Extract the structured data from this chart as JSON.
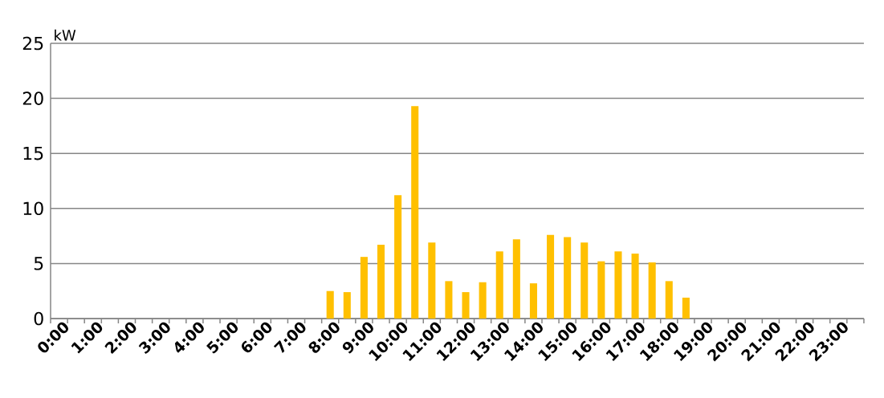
{
  "chart_data": {
    "type": "bar",
    "ylabel": "kW",
    "categories": [
      "0:00",
      null,
      "1:00",
      null,
      "2:00",
      null,
      "3:00",
      null,
      "4:00",
      null,
      "5:00",
      null,
      "6:00",
      null,
      "7:00",
      null,
      "8:00",
      null,
      "9:00",
      null,
      "10:00",
      null,
      "11:00",
      null,
      "12:00",
      null,
      "13:00",
      null,
      "14:00",
      null,
      "15:00",
      null,
      "16:00",
      null,
      "17:00",
      null,
      "18:00",
      null,
      "19:00",
      null,
      "20:00",
      null,
      "21:00",
      null,
      "22:00",
      null,
      "23:00",
      null
    ],
    "values": [
      0,
      0,
      0,
      0,
      0,
      0,
      0,
      0,
      0,
      0,
      0,
      0,
      0,
      0,
      0,
      0,
      2.5,
      2.4,
      5.6,
      6.7,
      11.2,
      19.3,
      6.9,
      3.4,
      2.4,
      3.3,
      6.1,
      7.2,
      3.2,
      7.6,
      7.4,
      6.9,
      5.2,
      6.1,
      5.9,
      5.1,
      3.4,
      1.9,
      0,
      0,
      0,
      0,
      0,
      0,
      0,
      0,
      0,
      0
    ],
    "color": "#ffc000",
    "ylim": [
      0,
      25
    ],
    "yticks": [
      0,
      5,
      10,
      15,
      20,
      25
    ],
    "grid": "y"
  }
}
